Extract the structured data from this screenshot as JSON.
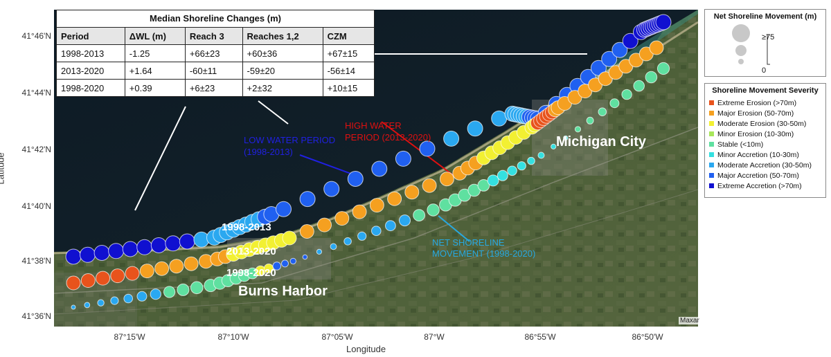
{
  "table": {
    "title": "Median Shoreline Changes (m)",
    "headers": [
      "Period",
      "ΔWL (m)",
      "Reach 3",
      "Reaches 1,2",
      "CZM"
    ],
    "rows": [
      [
        "1998-2013",
        "-1.25",
        "+66±23",
        "+60±36",
        "+67±15"
      ],
      [
        "2013-2020",
        "+1.64",
        "-60±11",
        "-59±20",
        "-56±14"
      ],
      [
        "1998-2020",
        "+0.39",
        "+6±23",
        "+2±32",
        "+10±15"
      ]
    ]
  },
  "axes": {
    "x_title": "Longitude",
    "y_title": "Latitude",
    "y_ticks": [
      "41°46'N",
      "41°44'N",
      "41°42'N",
      "41°40'N",
      "41°38'N",
      "41°36'N"
    ],
    "x_ticks": [
      "87°15'W",
      "87°10'W",
      "87°05'W",
      "87°W",
      "86°55'W",
      "86°50'W"
    ]
  },
  "labels": {
    "high_water": [
      "HIGH WATER",
      "PERIOD (2013-2020)"
    ],
    "low_water": [
      "LOW WATER PERIOD",
      "(1998-2013)"
    ],
    "net_movement": [
      "NET SHORELINE",
      "MOVEMENT (1998-2020)"
    ],
    "row_1998_2013": "1998-2013",
    "row_2013_2020": "2013-2020",
    "row_1998_2020": "1998-2020",
    "burns_harbor": "Burns Harbor",
    "michigan_city": "Michigan City",
    "attribution": "Maxar"
  },
  "legend_size": {
    "title": "Net Shoreline Movement (m)",
    "max_label": "≥75",
    "min_label": "0"
  },
  "legend_severity": {
    "title": "Shoreline Movement Severity",
    "items": [
      {
        "label": "Extreme Erosion (>70m)",
        "color": "#e8531c"
      },
      {
        "label": "Major Erosion (50-70m)",
        "color": "#f5a020"
      },
      {
        "label": "Moderate Erosion (30-50m)",
        "color": "#f2f032"
      },
      {
        "label": "Minor Erosion (10-30m)",
        "color": "#a8e65a"
      },
      {
        "label": "Stable (<10m)",
        "color": "#5fe0a0"
      },
      {
        "label": "Minor Accretion (10-30m)",
        "color": "#34e0e0"
      },
      {
        "label": "Moderate Accretion (30-50m)",
        "color": "#2aa8f0"
      },
      {
        "label": "Major Accretion (50-70m)",
        "color": "#2060f0"
      },
      {
        "label": "Extreme Accretion (>70m)",
        "color": "#1010d0"
      }
    ]
  },
  "colors": {
    "label_red": "#e01010",
    "label_blue": "#2020e0",
    "label_cyan": "#28a8e0"
  }
}
